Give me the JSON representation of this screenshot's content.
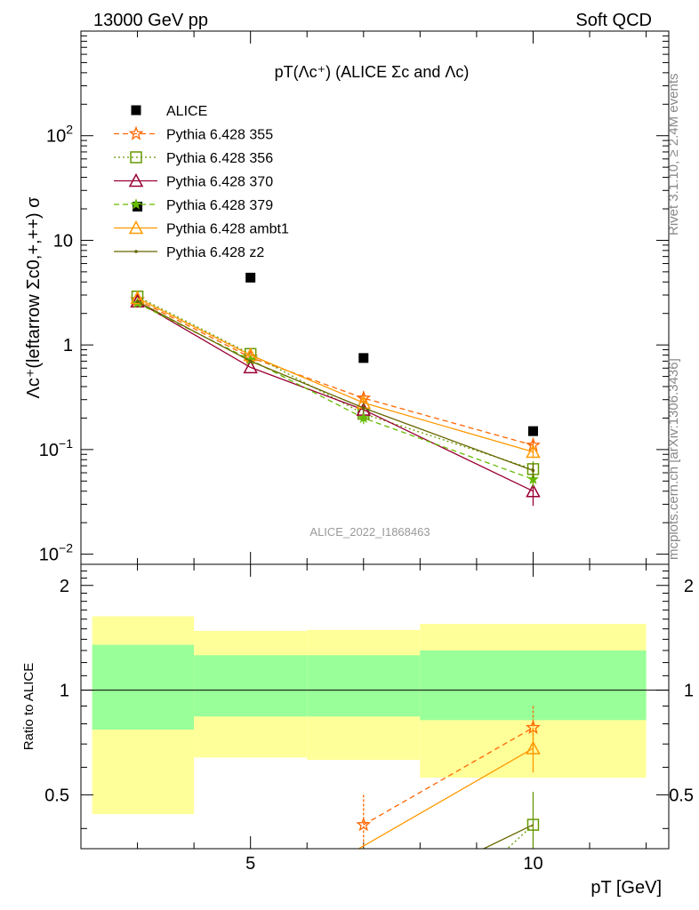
{
  "header": {
    "left": "13000 GeV pp",
    "right": "Soft QCD"
  },
  "side_text": {
    "rivet": "Rivet 3.1.10, ≥ 2.4M events",
    "mcplots": "mcplots.cern.ch [arXiv:1306.3436]"
  },
  "chart_data": [
    {
      "type": "line",
      "panel": "main",
      "title": "pT(Λc⁺) (ALICE Σc and Λc)",
      "ylabel": "Λc⁺(leftarrow Σc0,+,++) σ",
      "yscale": "log",
      "ylim": [
        0.008,
        1000
      ],
      "xlim": [
        2,
        12.4
      ],
      "y_ticks": [
        {
          "value": 0.01,
          "base": "10",
          "exp": "−2"
        },
        {
          "value": 0.1,
          "base": "10",
          "exp": "−1"
        },
        {
          "value": 1,
          "base": "1",
          "exp": ""
        },
        {
          "value": 10,
          "base": "10",
          "exp": ""
        },
        {
          "value": 100,
          "base": "10",
          "exp": "2"
        }
      ],
      "watermark": "ALICE_2022_I1868463",
      "legend_position": "top-left",
      "data": {
        "name": "ALICE",
        "x": [
          3,
          5,
          7,
          10
        ],
        "y": [
          21,
          4.4,
          0.75,
          0.15
        ],
        "color": "#000000"
      },
      "series": [
        {
          "name": "Pythia 6.428 355",
          "color": "#ff6600",
          "marker": "star",
          "dash": "6,4",
          "x": [
            3,
            5,
            7,
            10
          ],
          "y": [
            2.7,
            0.76,
            0.31,
            0.11
          ],
          "err": [
            0,
            0,
            0.05,
            0.02
          ]
        },
        {
          "name": "Pythia 6.428 356",
          "color": "#669900",
          "marker": "square",
          "dash": "2,3",
          "x": [
            3,
            5,
            7,
            10
          ],
          "y": [
            2.9,
            0.82,
            0.22,
            0.065
          ],
          "err": [
            0,
            0,
            0.03,
            0.012
          ]
        },
        {
          "name": "Pythia 6.428 370",
          "color": "#990033",
          "marker": "triangle",
          "dash": "",
          "x": [
            3,
            5,
            7,
            10
          ],
          "y": [
            2.6,
            0.61,
            0.24,
            0.04
          ],
          "err": [
            0,
            0,
            0.03,
            0.011
          ]
        },
        {
          "name": "Pythia 6.428 379",
          "color": "#66bb00",
          "marker": "smallstar",
          "dash": "6,4",
          "x": [
            3,
            5,
            7,
            10
          ],
          "y": [
            2.5,
            0.72,
            0.2,
            0.052
          ],
          "err": [
            0,
            0,
            0.025,
            0.008
          ]
        },
        {
          "name": "Pythia 6.428 ambt1",
          "color": "#ff9900",
          "marker": "triangle",
          "dash": "",
          "x": [
            3,
            5,
            7,
            10
          ],
          "y": [
            2.8,
            0.8,
            0.28,
            0.095
          ],
          "err": [
            0,
            0,
            0.03,
            0.012
          ]
        },
        {
          "name": "Pythia 6.428 z2",
          "color": "#666600",
          "marker": "dot",
          "dash": "",
          "x": [
            3,
            5,
            7,
            10
          ],
          "y": [
            2.6,
            0.7,
            0.25,
            0.063
          ],
          "err": [
            0,
            0,
            0.03,
            0.01
          ]
        }
      ]
    },
    {
      "type": "line",
      "panel": "ratio",
      "ylabel": "Ratio to ALICE",
      "xlabel": "pT [GeV]",
      "ylim": [
        0.35,
        2.3
      ],
      "xlim": [
        2,
        12.4
      ],
      "y_ticks": [
        0.5,
        1,
        2
      ],
      "x_ticks": [
        5,
        10
      ],
      "bands": [
        {
          "x0": 2.2,
          "x1": 4,
          "yellow": [
            0.44,
            1.63
          ],
          "green": [
            0.77,
            1.35
          ]
        },
        {
          "x0": 4,
          "x1": 6,
          "yellow": [
            0.64,
            1.48
          ],
          "green": [
            0.84,
            1.26
          ]
        },
        {
          "x0": 6,
          "x1": 8,
          "yellow": [
            0.63,
            1.49
          ],
          "green": [
            0.84,
            1.26
          ]
        },
        {
          "x0": 8,
          "x1": 12,
          "yellow": [
            0.56,
            1.55
          ],
          "green": [
            0.82,
            1.3
          ]
        }
      ],
      "series": [
        {
          "name": "Pythia 6.428 355",
          "color": "#ff6600",
          "marker": "star",
          "dash": "6,4",
          "x": [
            7,
            10
          ],
          "y": [
            0.41,
            0.78
          ],
          "err": [
            0.09,
            0.12
          ]
        },
        {
          "name": "Pythia 6.428 ambt1",
          "color": "#ff9900",
          "marker": "triangle",
          "dash": "",
          "x": [
            6.2,
            10
          ],
          "y": [
            0.3,
            0.68
          ],
          "err": [
            0,
            0.1
          ]
        },
        {
          "name": "Pythia 6.428 356",
          "color": "#669900",
          "marker": "square",
          "dash": "2,3",
          "x": [
            9.1,
            10
          ],
          "y": [
            0.3,
            0.41
          ],
          "err": [
            0,
            0.1
          ]
        },
        {
          "name": "Pythia 6.428 z2",
          "color": "#666600",
          "marker": "none",
          "dash": "",
          "x": [
            8.8,
            10
          ],
          "y": [
            0.33,
            0.41
          ],
          "err": [
            0,
            0
          ]
        }
      ]
    }
  ]
}
